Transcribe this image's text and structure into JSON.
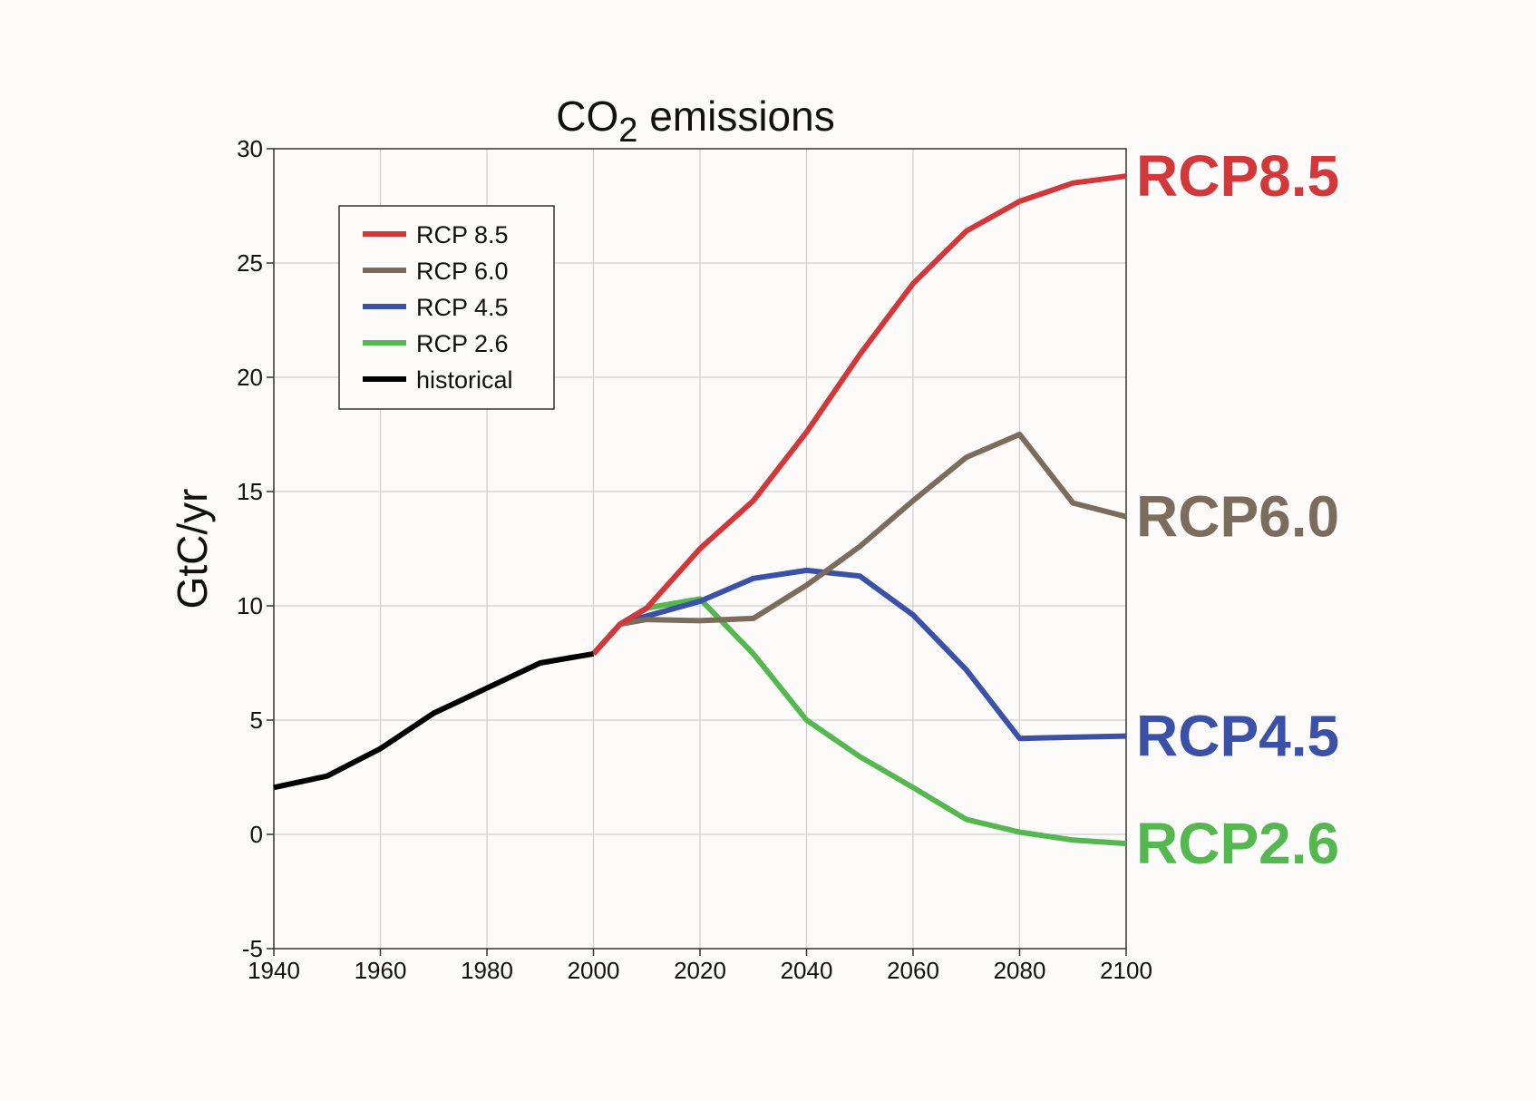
{
  "chart_data": {
    "type": "line",
    "title": {
      "prefix": "CO",
      "subscript": "2",
      "suffix": " emissions"
    },
    "xlabel": "",
    "ylabel": "GtC/yr",
    "xlim": [
      1940,
      2100
    ],
    "ylim": [
      -5,
      30
    ],
    "xticks": [
      1940,
      1960,
      1980,
      2000,
      2020,
      2040,
      2060,
      2080,
      2100
    ],
    "yticks": [
      -5,
      0,
      5,
      10,
      15,
      20,
      25,
      30
    ],
    "grid": true,
    "legend_position": "upper-left",
    "legend": [
      {
        "key": "rcp85",
        "label": "RCP 8.5"
      },
      {
        "key": "rcp60",
        "label": "RCP 6.0"
      },
      {
        "key": "rcp45",
        "label": "RCP 4.5"
      },
      {
        "key": "rcp26",
        "label": "RCP 2.6"
      },
      {
        "key": "historical",
        "label": "historical"
      }
    ],
    "series": [
      {
        "key": "historical",
        "name": "historical",
        "color": "#000000",
        "x": [
          1940,
          1950,
          1960,
          1970,
          1980,
          1990,
          2000
        ],
        "y": [
          2.05,
          2.55,
          3.75,
          5.3,
          6.4,
          7.5,
          7.9
        ]
      },
      {
        "key": "rcp85",
        "name": "RCP 8.5",
        "end_label": "RCP8.5",
        "color": "#d2373a",
        "x": [
          2000,
          2005,
          2010,
          2020,
          2030,
          2040,
          2050,
          2060,
          2070,
          2080,
          2090,
          2100
        ],
        "y": [
          7.9,
          9.2,
          9.9,
          12.5,
          14.6,
          17.6,
          21.0,
          24.1,
          26.4,
          27.7,
          28.5,
          28.8
        ]
      },
      {
        "key": "rcp60",
        "name": "RCP 6.0",
        "end_label": "RCP6.0",
        "color": "#7b6c5c",
        "x": [
          2000,
          2005,
          2010,
          2020,
          2030,
          2040,
          2050,
          2060,
          2070,
          2080,
          2090,
          2100
        ],
        "y": [
          7.9,
          9.2,
          9.4,
          9.35,
          9.45,
          10.9,
          12.6,
          14.6,
          16.5,
          17.5,
          14.5,
          13.9
        ]
      },
      {
        "key": "rcp45",
        "name": "RCP 4.5",
        "end_label": "RCP4.5",
        "color": "#3b50a7",
        "x": [
          2000,
          2005,
          2010,
          2020,
          2030,
          2040,
          2050,
          2060,
          2070,
          2080,
          2090,
          2100
        ],
        "y": [
          7.9,
          9.2,
          9.55,
          10.2,
          11.2,
          11.55,
          11.3,
          9.6,
          7.2,
          4.2,
          4.25,
          4.3
        ]
      },
      {
        "key": "rcp26",
        "name": "RCP 2.6",
        "end_label": "RCP2.6",
        "color": "#55b74f",
        "x": [
          2000,
          2005,
          2010,
          2020,
          2030,
          2040,
          2050,
          2060,
          2070,
          2080,
          2090,
          2100
        ],
        "y": [
          7.9,
          9.2,
          9.9,
          10.3,
          7.9,
          5.0,
          3.4,
          2.05,
          0.65,
          0.1,
          -0.25,
          -0.4
        ]
      }
    ]
  }
}
